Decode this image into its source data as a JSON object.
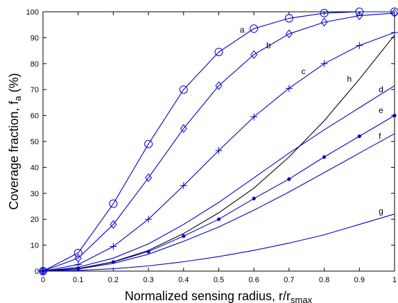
{
  "chart_data": {
    "type": "line",
    "xlabel": "Normalized sensing radius, r/r",
    "xlabel_sub": "smax",
    "ylabel": "Coverage fraction, f",
    "ylabel_sub": "a",
    "ylabel_unit": " (%)",
    "xlim": [
      0,
      1
    ],
    "ylim": [
      0,
      100
    ],
    "xticks": [
      0,
      0.1,
      0.2,
      0.3,
      0.4,
      0.5,
      0.6,
      0.7,
      0.8,
      0.9,
      1
    ],
    "xtick_labels": [
      "0",
      "0.1",
      "0.2",
      "0.3",
      "0.4",
      "0.5",
      "0.6",
      "0.7",
      "0.8",
      "0.9",
      "1"
    ],
    "yticks": [
      0,
      10,
      20,
      30,
      40,
      50,
      60,
      70,
      80,
      90,
      100
    ],
    "ytick_labels": [
      "0",
      "10",
      "20",
      "30",
      "40",
      "50",
      "60",
      "70",
      "80",
      "90",
      "100"
    ],
    "grid": false,
    "series": [
      {
        "name": "a",
        "color": "#0000cc",
        "marker": "circle",
        "x": [
          0,
          0.1,
          0.2,
          0.3,
          0.4,
          0.5,
          0.6,
          0.7,
          0.8,
          0.9,
          1
        ],
        "y": [
          0,
          7,
          26,
          49,
          70,
          84.5,
          93.5,
          97.5,
          99.5,
          100,
          100
        ]
      },
      {
        "name": "b",
        "color": "#0000cc",
        "marker": "diamond",
        "x": [
          0,
          0.1,
          0.2,
          0.3,
          0.4,
          0.5,
          0.6,
          0.7,
          0.8,
          0.9,
          1
        ],
        "y": [
          0,
          5,
          18,
          36,
          55,
          71.5,
          83.5,
          91.5,
          96,
          98.5,
          99.5
        ]
      },
      {
        "name": "c",
        "color": "#0000cc",
        "marker": "plus",
        "x": [
          0,
          0.1,
          0.2,
          0.3,
          0.4,
          0.5,
          0.6,
          0.7,
          0.8,
          0.9,
          1
        ],
        "y": [
          0,
          2.5,
          9.5,
          20,
          33,
          46.5,
          59.5,
          70.5,
          80,
          87,
          92
        ]
      },
      {
        "name": "d",
        "color": "#0000cc",
        "marker": "none",
        "x": [
          0,
          0.1,
          0.2,
          0.3,
          0.4,
          0.5,
          0.6,
          0.7,
          0.8,
          0.9,
          1
        ],
        "y": [
          0,
          1.5,
          5,
          10.5,
          18,
          26.5,
          36,
          45.5,
          54.5,
          63,
          71.5
        ]
      },
      {
        "name": "e",
        "color": "#0000cc",
        "marker": "dot",
        "x": [
          0,
          0.1,
          0.2,
          0.3,
          0.4,
          0.5,
          0.6,
          0.7,
          0.8,
          0.9,
          1
        ],
        "y": [
          0,
          1,
          3.5,
          7.5,
          13.5,
          20,
          28,
          35.5,
          44,
          52,
          60
        ]
      },
      {
        "name": "f",
        "color": "#0000cc",
        "marker": "none",
        "x": [
          0,
          0.1,
          0.2,
          0.3,
          0.4,
          0.5,
          0.6,
          0.7,
          0.8,
          0.9,
          1
        ],
        "y": [
          0,
          0.8,
          3,
          6.5,
          11.5,
          17,
          23.5,
          30.5,
          38,
          45.5,
          53
        ]
      },
      {
        "name": "g",
        "color": "#0000cc",
        "marker": "none",
        "x": [
          0,
          0.1,
          0.2,
          0.3,
          0.4,
          0.5,
          0.6,
          0.7,
          0.8,
          0.9,
          1
        ],
        "y": [
          0,
          0.3,
          0.9,
          2,
          3.6,
          5.6,
          8,
          10.8,
          14,
          18,
          22
        ]
      },
      {
        "name": "h",
        "color": "#000000",
        "marker": "none",
        "x": [
          0,
          0.1,
          0.2,
          0.3,
          0.4,
          0.5,
          0.6,
          0.7,
          0.8,
          0.9,
          1
        ],
        "y": [
          0,
          0.9,
          3.6,
          8,
          14.5,
          22.5,
          32,
          44,
          58,
          74,
          91
        ]
      }
    ],
    "annotations": [
      {
        "text": "a",
        "x": 0.56,
        "y": 92
      },
      {
        "text": "b",
        "x": 0.635,
        "y": 86
      },
      {
        "text": "c",
        "x": 0.735,
        "y": 76
      },
      {
        "text": "h",
        "x": 0.865,
        "y": 73
      },
      {
        "text": "d",
        "x": 0.955,
        "y": 69
      },
      {
        "text": "e",
        "x": 0.955,
        "y": 61
      },
      {
        "text": "f",
        "x": 0.955,
        "y": 51
      },
      {
        "text": "g",
        "x": 0.955,
        "y": 22
      }
    ]
  }
}
